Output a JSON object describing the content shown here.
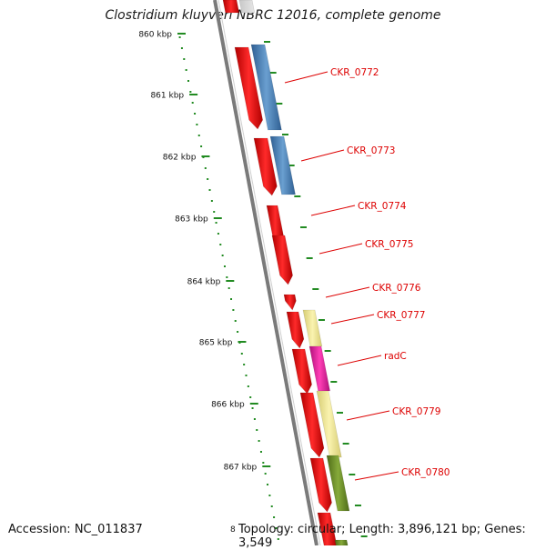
{
  "title": "Clostridium kluyveri NBRC 12016, complete genome",
  "footer": {
    "accession": "Accession: NC_011837",
    "summary": "Topology: circular; Length: 3,896,121 bp; Genes: 3,549"
  },
  "ruler": {
    "labels": [
      "860 kbp",
      "861 kbp",
      "862 kbp",
      "863 kbp",
      "864 kbp",
      "865 kbp",
      "866 kbp",
      "867 kbp"
    ],
    "edge_label": "8"
  },
  "genes": [
    {
      "label": "CKR_0772"
    },
    {
      "label": "CKR_0773"
    },
    {
      "label": "CKR_0774"
    },
    {
      "label": "CKR_0775"
    },
    {
      "label": "CKR_0776"
    },
    {
      "label": "CKR_0777"
    },
    {
      "label": "radC"
    },
    {
      "label": "CKR_0779"
    },
    {
      "label": "CKR_0780"
    }
  ],
  "colors": {
    "cds": "#ff0000",
    "blue": "#4a7fb5",
    "khaki": "#f0e68c",
    "magenta": "#e0159a",
    "olive": "#6b8e23",
    "ruler": "#228b22",
    "backbone": "#7a7a7a",
    "label": "#dd0000"
  }
}
